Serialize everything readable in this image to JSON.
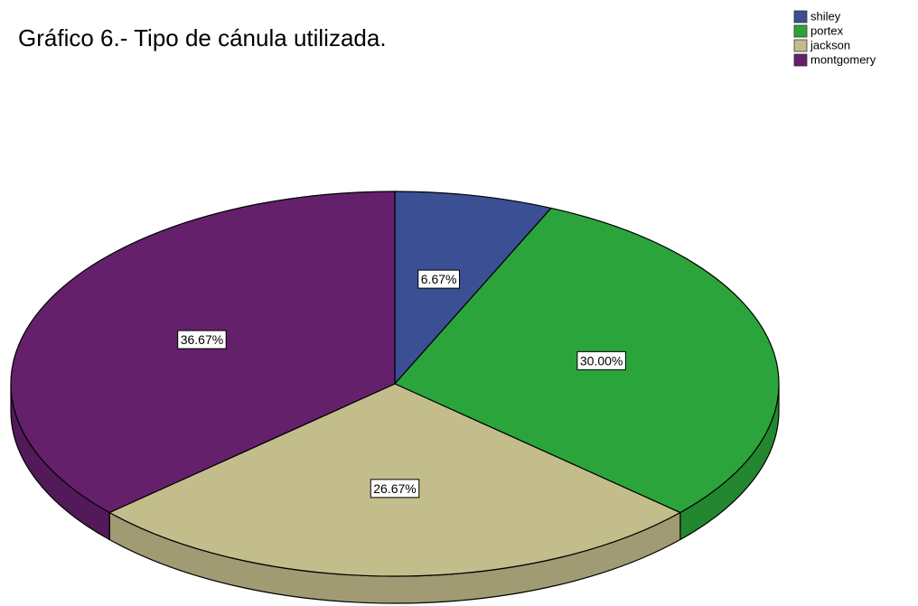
{
  "chart_data": {
    "type": "pie",
    "title": "Gráfico 6.- Tipo de cánula utilizada.",
    "categories": [
      "shiley",
      "portex",
      "jackson",
      "montgomery"
    ],
    "values": [
      6.67,
      30.0,
      26.67,
      36.67
    ],
    "value_labels": [
      "6.67%",
      "30.00%",
      "26.67%",
      "36.67%"
    ],
    "colors": [
      "#3b4f95",
      "#2ba53b",
      "#c3bd8c",
      "#64206b"
    ],
    "legend": "top-right"
  }
}
